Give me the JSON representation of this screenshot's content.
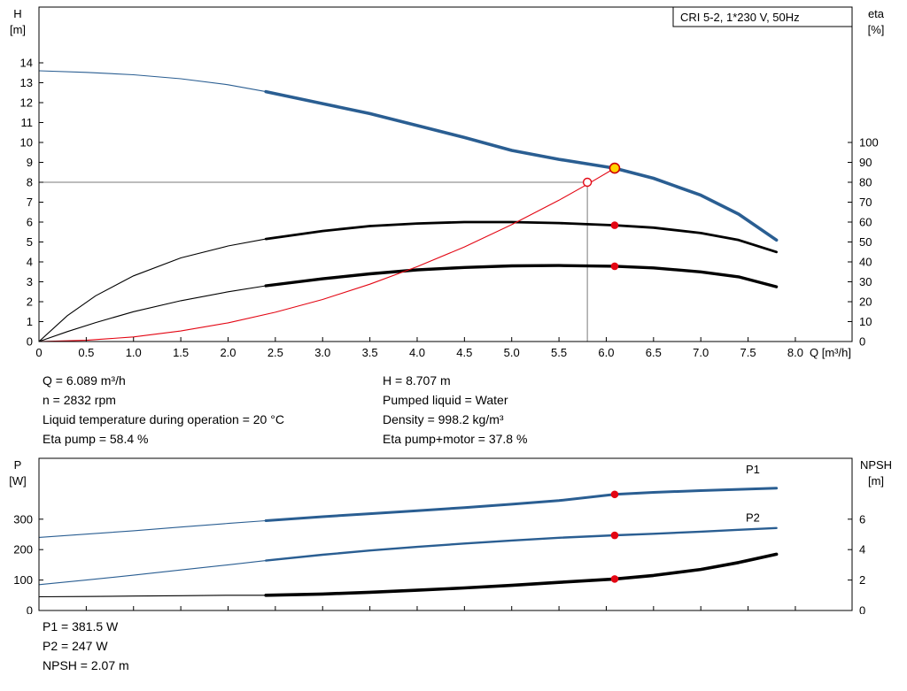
{
  "page": {
    "background": "#ffffff"
  },
  "colors": {
    "curve_blue": "#2a5e92",
    "marker_red": "#e30613",
    "duty_yellow": "#ffd400",
    "duty_ring_red": "#cc0000",
    "guide_gray": "#7a7a7a",
    "axis_black": "#000000"
  },
  "info_panel": {
    "left": [
      "Q = 6.089 m³/h",
      "n = 2832 rpm",
      "Liquid temperature during operation = 20 °C",
      "Eta pump = 58.4 %"
    ],
    "right": [
      "H = 8.707 m",
      "Pumped liquid = Water",
      "Density = 998.2 kg/m³",
      "Eta pump+motor = 37.8 %"
    ]
  },
  "results_panel": [
    "P1 = 381.5 W",
    "P2 = 247 W",
    "NPSH = 2.07 m"
  ],
  "chart_data": [
    {
      "type": "line",
      "title": "CRI 5-2, 1*230 V, 50Hz",
      "x": {
        "min": 0,
        "max": 8.6,
        "label": "Q [m³/h]",
        "show_labels": true,
        "ticks": [
          "0",
          "0.5",
          "1.0",
          "1.5",
          "2.0",
          "2.5",
          "3.0",
          "3.5",
          "4.0",
          "4.5",
          "5.0",
          "5.5",
          "6.0",
          "6.5",
          "7.0",
          "7.5",
          "8.0"
        ]
      },
      "y_left": {
        "name": "H",
        "unit": "[m]",
        "min": 0,
        "max": 16.8,
        "ticks": [
          "0",
          "1",
          "2",
          "3",
          "4",
          "5",
          "6",
          "7",
          "8",
          "9",
          "10",
          "11",
          "12",
          "13",
          "14"
        ]
      },
      "y_right": {
        "name": "eta",
        "unit": "[%]",
        "min": 0,
        "max": 168,
        "ticks": [
          "0",
          "10",
          "20",
          "30",
          "40",
          "50",
          "60",
          "70",
          "80",
          "90",
          "100"
        ]
      },
      "guides": [
        {
          "type": "v",
          "x": 5.8,
          "v": 8.0
        },
        {
          "type": "h",
          "x": 5.8,
          "v": 8.0
        }
      ],
      "series": [
        {
          "name": "eta-pump",
          "axis": "right",
          "color": "#000000",
          "thick_from": 2.4,
          "thick_width": 2.8,
          "points": [
            [
              0,
              0
            ],
            [
              0.3,
              13
            ],
            [
              0.6,
              23
            ],
            [
              1,
              33
            ],
            [
              1.5,
              42
            ],
            [
              2,
              48
            ],
            [
              2.4,
              51.5
            ],
            [
              3,
              55.5
            ],
            [
              3.5,
              58
            ],
            [
              4,
              59.3
            ],
            [
              4.5,
              60
            ],
            [
              5,
              60
            ],
            [
              5.5,
              59.5
            ],
            [
              6.089,
              58.4
            ],
            [
              6.5,
              57.2
            ],
            [
              7,
              54.5
            ],
            [
              7.4,
              51
            ],
            [
              7.8,
              45
            ]
          ]
        },
        {
          "name": "eta-pump-motor",
          "axis": "right",
          "color": "#000000",
          "thick_from": 2.4,
          "thick_width": 3.4,
          "points": [
            [
              0,
              0
            ],
            [
              0.3,
              5
            ],
            [
              0.6,
              9.5
            ],
            [
              1,
              15
            ],
            [
              1.5,
              20.5
            ],
            [
              2,
              25
            ],
            [
              2.4,
              28
            ],
            [
              3,
              31.5
            ],
            [
              3.5,
              34
            ],
            [
              4,
              36
            ],
            [
              4.5,
              37.2
            ],
            [
              5,
              38
            ],
            [
              5.5,
              38.2
            ],
            [
              6.089,
              37.8
            ],
            [
              6.5,
              37
            ],
            [
              7,
              35
            ],
            [
              7.4,
              32.5
            ],
            [
              7.8,
              27.5
            ]
          ]
        },
        {
          "name": "duty-curve",
          "axis": "left",
          "color": "#e30613",
          "thick_from": null,
          "points": [
            [
              0,
              0
            ],
            [
              0.5,
              0.06
            ],
            [
              1,
              0.23
            ],
            [
              1.5,
              0.53
            ],
            [
              2,
              0.94
            ],
            [
              2.5,
              1.47
            ],
            [
              3,
              2.11
            ],
            [
              3.5,
              2.88
            ],
            [
              4,
              3.76
            ],
            [
              4.5,
              4.75
            ],
            [
              5,
              5.87
            ],
            [
              5.5,
              7.1
            ],
            [
              5.8,
              7.9
            ],
            [
              6.089,
              8.707
            ]
          ]
        },
        {
          "name": "pump-curve",
          "axis": "left",
          "color": "#2a5e92",
          "thick_from": 2.4,
          "thick_width": 3.6,
          "points": [
            [
              0,
              13.6
            ],
            [
              0.5,
              13.52
            ],
            [
              1,
              13.4
            ],
            [
              1.5,
              13.2
            ],
            [
              2,
              12.9
            ],
            [
              2.4,
              12.55
            ],
            [
              3,
              11.95
            ],
            [
              3.5,
              11.45
            ],
            [
              4,
              10.85
            ],
            [
              4.5,
              10.25
            ],
            [
              5,
              9.6
            ],
            [
              5.5,
              9.15
            ],
            [
              6.089,
              8.707
            ],
            [
              6.5,
              8.2
            ],
            [
              7,
              7.35
            ],
            [
              7.4,
              6.4
            ],
            [
              7.8,
              5.1
            ]
          ]
        }
      ],
      "markers": [
        {
          "name": "specified-duty-point-marker",
          "style": "open",
          "x": 5.8,
          "v": 8.0,
          "axis": "left"
        },
        {
          "name": "operating-point-marker",
          "style": "duty",
          "x": 6.089,
          "v": 8.707,
          "axis": "left"
        },
        {
          "name": "eta-pump-point-marker",
          "style": "dot",
          "x": 6.089,
          "v": 58.4,
          "axis": "right"
        },
        {
          "name": "eta-pump-motor-point-marker",
          "style": "dot",
          "x": 6.089,
          "v": 37.8,
          "axis": "right"
        }
      ],
      "curve_labels": []
    },
    {
      "type": "line",
      "title": "",
      "x": {
        "min": 0,
        "max": 8.6,
        "label": "",
        "show_labels": false,
        "ticks": [
          "0",
          "0.5",
          "1.0",
          "1.5",
          "2.0",
          "2.5",
          "3.0",
          "3.5",
          "4.0",
          "4.5",
          "5.0",
          "5.5",
          "6.0",
          "6.5",
          "7.0",
          "7.5",
          "8.0"
        ]
      },
      "y_left": {
        "name": "P",
        "unit": "[W]",
        "min": 0,
        "max": 500,
        "ticks": [
          "0",
          "100",
          "200",
          "300"
        ]
      },
      "y_right": {
        "name": "NPSH",
        "unit": "[m]",
        "min": 0,
        "max": 10,
        "ticks": [
          "0",
          "2",
          "4",
          "6"
        ]
      },
      "guides": [],
      "series": [
        {
          "name": "p1",
          "axis": "left",
          "color": "#2a5e92",
          "thick_from": 2.4,
          "thick_width": 3.0,
          "points": [
            [
              0,
              240
            ],
            [
              0.5,
              251
            ],
            [
              1,
              262
            ],
            [
              1.5,
              274
            ],
            [
              2,
              286
            ],
            [
              2.4,
              295
            ],
            [
              3,
              308
            ],
            [
              3.5,
              318
            ],
            [
              4,
              328
            ],
            [
              4.5,
              338
            ],
            [
              5,
              349
            ],
            [
              5.5,
              361
            ],
            [
              6.089,
              381.5
            ],
            [
              6.5,
              388
            ],
            [
              7,
              394
            ],
            [
              7.4,
              398
            ],
            [
              7.8,
              402
            ]
          ]
        },
        {
          "name": "p2",
          "axis": "left",
          "color": "#2a5e92",
          "thick_from": 2.4,
          "thick_width": 2.4,
          "points": [
            [
              0,
              85
            ],
            [
              0.5,
              100
            ],
            [
              1,
              116
            ],
            [
              1.5,
              133
            ],
            [
              2,
              150
            ],
            [
              2.4,
              164
            ],
            [
              3,
              183
            ],
            [
              3.5,
              197
            ],
            [
              4,
              209
            ],
            [
              4.5,
              220
            ],
            [
              5,
              230
            ],
            [
              5.5,
              239
            ],
            [
              6.089,
              247
            ],
            [
              6.5,
              252
            ],
            [
              7,
              259
            ],
            [
              7.4,
              265
            ],
            [
              7.8,
              271
            ]
          ]
        },
        {
          "name": "npsh",
          "axis": "right",
          "color": "#000000",
          "thick_from": 2.4,
          "thick_width": 3.6,
          "points": [
            [
              0,
              0.9
            ],
            [
              0.5,
              0.92
            ],
            [
              1,
              0.95
            ],
            [
              1.5,
              0.97
            ],
            [
              2,
              1.0
            ],
            [
              2.4,
              1.0
            ],
            [
              3,
              1.08
            ],
            [
              3.5,
              1.2
            ],
            [
              4,
              1.33
            ],
            [
              4.5,
              1.48
            ],
            [
              5,
              1.65
            ],
            [
              5.5,
              1.85
            ],
            [
              6.089,
              2.07
            ],
            [
              6.5,
              2.3
            ],
            [
              7,
              2.7
            ],
            [
              7.4,
              3.15
            ],
            [
              7.8,
              3.7
            ]
          ]
        }
      ],
      "markers": [
        {
          "name": "p1-point-marker",
          "style": "dot",
          "x": 6.089,
          "v": 381.5,
          "axis": "left"
        },
        {
          "name": "p2-point-marker",
          "style": "dot",
          "x": 6.089,
          "v": 247,
          "axis": "left"
        },
        {
          "name": "npsh-point-marker",
          "style": "dot",
          "x": 6.089,
          "v": 2.07,
          "axis": "right"
        }
      ],
      "curve_labels": [
        {
          "text": "P1",
          "x": 7.55,
          "v": 450,
          "axis": "left",
          "color": "#2a5e92"
        },
        {
          "text": "P2",
          "x": 7.55,
          "v": 292,
          "axis": "left",
          "color": "#2a5e92"
        }
      ]
    }
  ]
}
